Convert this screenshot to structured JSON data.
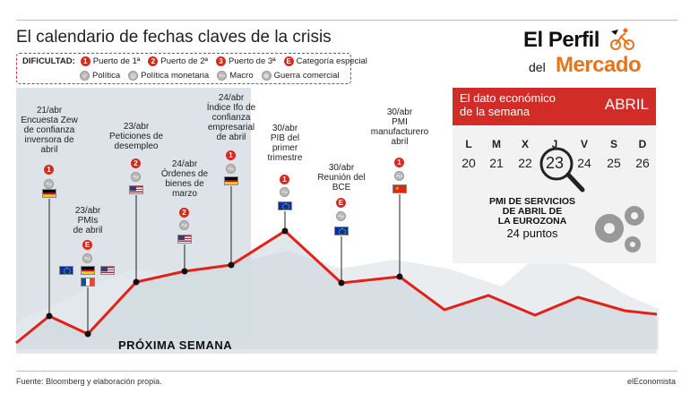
{
  "title": "El calendario de fechas claves de la crisis",
  "brand": {
    "line1": "El Perfil",
    "line2": "del",
    "line3": "Mercado"
  },
  "legend": {
    "label": "DIFICULTAD:",
    "items": [
      {
        "badge": "1",
        "text": "Puerto de 1ª"
      },
      {
        "badge": "2",
        "text": "Puerto de 2ª"
      },
      {
        "badge": "3",
        "text": "Puerto de 3ª"
      },
      {
        "badge": "E",
        "text": "Categoría especial"
      }
    ],
    "types": [
      "Política",
      "Política monetaria",
      "Macro",
      "Guerra comercial"
    ]
  },
  "events": [
    {
      "date": "21/abr",
      "text": "Encuesta Zew\nde confianza\ninversora de\nabril",
      "badge": "1",
      "flags": [
        "de"
      ]
    },
    {
      "date": "23/abr",
      "text": "PMIs\nde abril",
      "badge": "E",
      "flags": [
        "eu",
        "de",
        "us",
        "fr"
      ]
    },
    {
      "date": "23/abr",
      "text": "Peticiones de\ndesempleo",
      "badge": "2",
      "flags": [
        "us"
      ]
    },
    {
      "date": "24/abr",
      "text": "Órdenes de\nbienes de\nmarzo",
      "badge": "2",
      "flags": [
        "us"
      ]
    },
    {
      "date": "24/abr",
      "text": "Índice Ifo de\nconfianza\nempresarial\nde abril",
      "badge": "1",
      "flags": [
        "de"
      ]
    },
    {
      "date": "30/abr",
      "text": "PIB del\nprimer\ntrimestre",
      "badge": "1",
      "flags": [
        "eu"
      ]
    },
    {
      "date": "30/abr",
      "text": "Reunión del\nBCE",
      "badge": "E",
      "flags": [
        "eu"
      ]
    },
    {
      "date": "30/abr",
      "text": "PMI\nmanufacturero\nabril",
      "badge": "1",
      "flags": [
        "cn"
      ]
    }
  ],
  "next_week": "PRÓXIMA SEMANA",
  "box": {
    "title": "El dato económico\nde la semana",
    "month": "ABRIL",
    "weekdays": [
      "L",
      "M",
      "X",
      "J",
      "V",
      "S",
      "D"
    ],
    "days": [
      "20",
      "21",
      "22",
      "23",
      "24",
      "25",
      "26"
    ],
    "highlight_day": "23",
    "headline": "PMI DE SERVICIOS\nDE ABRIL DE\nLA EUROZONA",
    "value": "24 puntos"
  },
  "footer": {
    "source": "Fuente: Bloomberg y elaboración propia.",
    "credit": "elEconomista"
  },
  "colors": {
    "accent": "#d22c27",
    "brand_orange": "#e8741a",
    "shade": "#dde3e8"
  }
}
